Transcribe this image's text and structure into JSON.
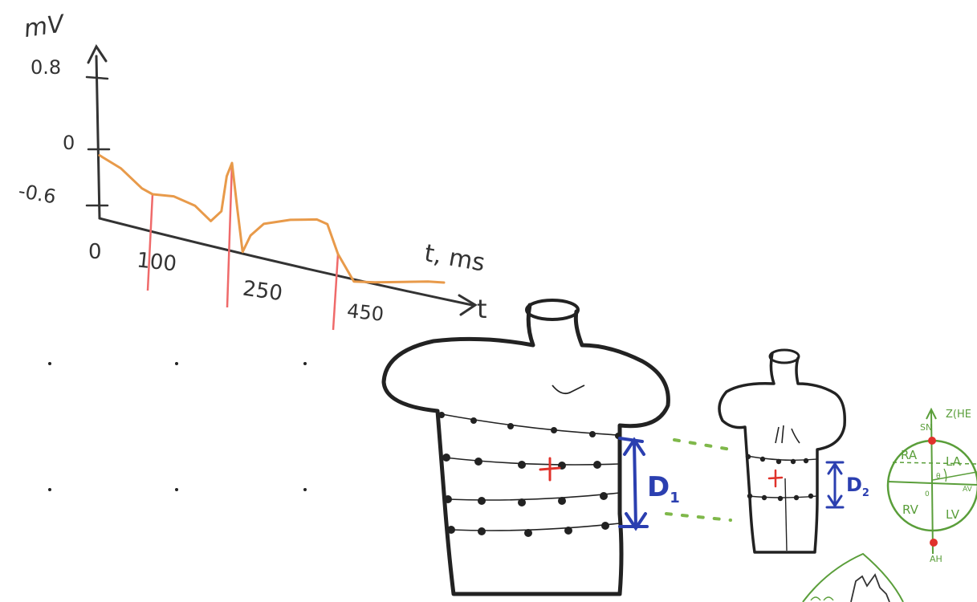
{
  "chart_data": {
    "type": "line",
    "ylabel": "mV",
    "xlabel": "t, ms",
    "x_axis_end_label": "t",
    "y_ticks": [
      "0.8",
      "0",
      "-0.6"
    ],
    "x_ticks": [
      "0",
      "100",
      "250",
      "450"
    ],
    "ylim": [
      -0.6,
      0.8
    ],
    "xlim": [
      0,
      650
    ],
    "series": [
      {
        "x": [
          0,
          40,
          80,
          100,
          140,
          180,
          210,
          230,
          240,
          250,
          260,
          270,
          285,
          310,
          360,
          410,
          430,
          450,
          480,
          520,
          560,
          620,
          650
        ],
        "y": [
          -0.05,
          -0.12,
          -0.25,
          -0.28,
          -0.26,
          -0.3,
          -0.4,
          -0.3,
          0.0,
          0.12,
          -0.25,
          -0.6,
          -0.45,
          -0.33,
          -0.25,
          -0.2,
          -0.22,
          -0.45,
          -0.65,
          -0.62,
          -0.58,
          -0.52,
          -0.5
        ]
      }
    ],
    "markers_x": [
      100,
      250,
      450
    ]
  },
  "torso_large": {
    "distance_label": "D",
    "distance_sub": "1"
  },
  "torso_small": {
    "distance_label": "D",
    "distance_sub": "2"
  },
  "heart_diagram": {
    "top_marker": "SN",
    "axis_label": "Z(HE",
    "chambers": [
      "RA",
      "LA",
      "RV",
      "LV"
    ],
    "side_label": "AV",
    "center_label": "0",
    "angle_label": "θ",
    "bottom_marker": "AH"
  },
  "colors": {
    "signal": "#e89a4a",
    "markers": "#ef6a6a",
    "distance": "#2b3fb0",
    "guide": "#7fb84a",
    "heart": "#5a9e3a",
    "origin": "#e0322b"
  }
}
